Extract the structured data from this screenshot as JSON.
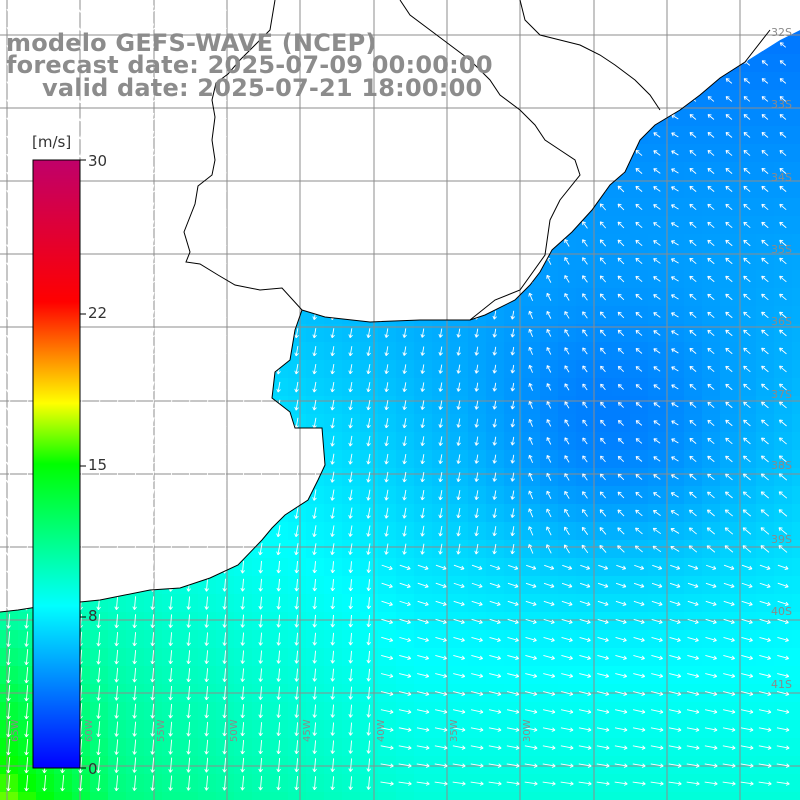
{
  "title": {
    "model": "modelo GEFS-WAVE (NCEP)",
    "forecast": "forecast date: 2025-07-09 00:00:00",
    "valid": "valid date: 2025-07-21 18:00:00"
  },
  "colorbar": {
    "unit": "[m/s]",
    "ticks": [
      "30",
      "22",
      "15",
      "8",
      "0"
    ],
    "tick_values": [
      30,
      22,
      15,
      8,
      0
    ],
    "range": [
      0,
      30
    ],
    "colors": [
      "#0000ff",
      "#00ffff",
      "#00ff00",
      "#ffff00",
      "#ff0000",
      "#c0006a"
    ]
  },
  "map": {
    "variable": "wind speed",
    "land_color": "#ffffff",
    "coast_color": "#000000",
    "grid_color": "#8c8c8c",
    "arrow_color": "#ffffff",
    "lon_labels": [
      "65W",
      "60W",
      "55W",
      "50W",
      "45W",
      "40W",
      "35W",
      "30W"
    ],
    "lat_labels": [
      "32S",
      "33S",
      "34S",
      "35S",
      "36S",
      "37S",
      "38S",
      "39S",
      "40S",
      "41S"
    ]
  }
}
